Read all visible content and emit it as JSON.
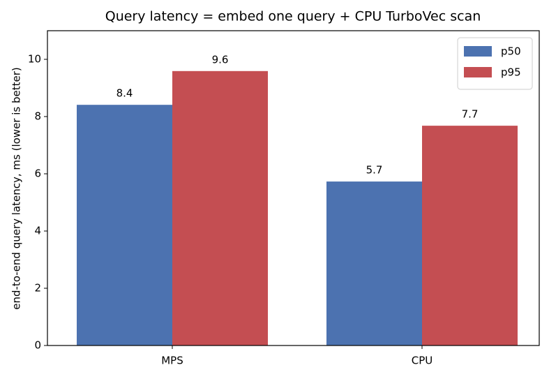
{
  "chart_data": {
    "type": "bar",
    "title": "Query latency = embed one query + CPU TurboVec scan",
    "ylabel": "end-to-end query latency, ms (lower is better)",
    "categories": [
      "MPS",
      "CPU"
    ],
    "series": [
      {
        "name": "p50",
        "color": "#4c72b0",
        "values": [
          8.41,
          5.73
        ],
        "value_labels": [
          "8.4",
          "5.7"
        ]
      },
      {
        "name": "p95",
        "color": "#c44e52",
        "values": [
          9.59,
          7.68
        ],
        "value_labels": [
          "9.6",
          "7.7"
        ]
      }
    ],
    "ylim": [
      0,
      11
    ],
    "yticks": [
      0,
      2,
      4,
      6,
      8,
      10
    ],
    "legend": "upper right"
  }
}
